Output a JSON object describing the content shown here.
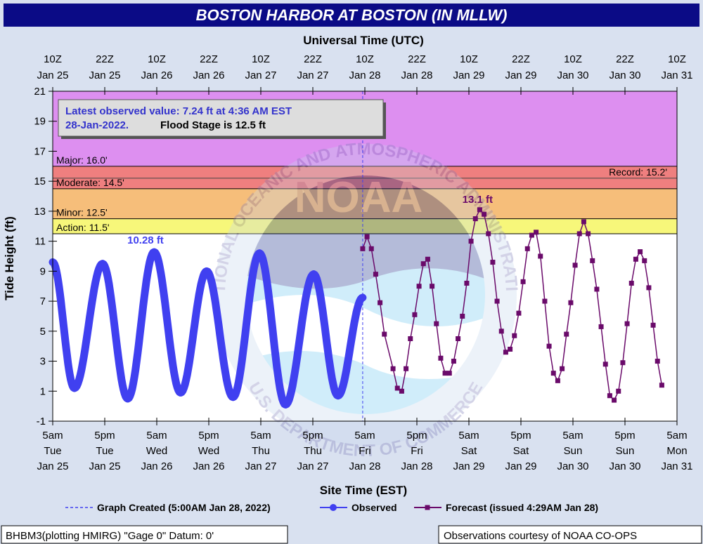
{
  "title": "BOSTON HARBOR AT BOSTON (IN MLLW)",
  "top_axis_title": "Universal Time (UTC)",
  "top_ticks": [
    {
      "hour": "10Z",
      "date": "Jan 25"
    },
    {
      "hour": "22Z",
      "date": "Jan 25"
    },
    {
      "hour": "10Z",
      "date": "Jan 26"
    },
    {
      "hour": "22Z",
      "date": "Jan 26"
    },
    {
      "hour": "10Z",
      "date": "Jan 27"
    },
    {
      "hour": "22Z",
      "date": "Jan 27"
    },
    {
      "hour": "10Z",
      "date": "Jan 28"
    },
    {
      "hour": "22Z",
      "date": "Jan 28"
    },
    {
      "hour": "10Z",
      "date": "Jan 29"
    },
    {
      "hour": "22Z",
      "date": "Jan 29"
    },
    {
      "hour": "10Z",
      "date": "Jan 30"
    },
    {
      "hour": "22Z",
      "date": "Jan 30"
    },
    {
      "hour": "10Z",
      "date": "Jan 31"
    }
  ],
  "bottom_axis_title": "Site Time (EST)",
  "bottom_ticks": [
    {
      "time": "5am",
      "day": "Tue",
      "date": "Jan 25"
    },
    {
      "time": "5pm",
      "day": "Tue",
      "date": "Jan 25"
    },
    {
      "time": "5am",
      "day": "Wed",
      "date": "Jan 26"
    },
    {
      "time": "5pm",
      "day": "Wed",
      "date": "Jan 26"
    },
    {
      "time": "5am",
      "day": "Thu",
      "date": "Jan 27"
    },
    {
      "time": "5pm",
      "day": "Thu",
      "date": "Jan 27"
    },
    {
      "time": "5am",
      "day": "Fri",
      "date": "Jan 28"
    },
    {
      "time": "5pm",
      "day": "Fri",
      "date": "Jan 28"
    },
    {
      "time": "5am",
      "day": "Sat",
      "date": "Jan 29"
    },
    {
      "time": "5pm",
      "day": "Sat",
      "date": "Jan 29"
    },
    {
      "time": "5am",
      "day": "Sun",
      "date": "Jan 30"
    },
    {
      "time": "5pm",
      "day": "Sun",
      "date": "Jan 30"
    },
    {
      "time": "5am",
      "day": "Mon",
      "date": "Jan 31"
    }
  ],
  "y_axis_title": "Tide Height (ft)",
  "y_ticks": [
    "21",
    "19",
    "17",
    "15",
    "13",
    "11",
    "9",
    "7",
    "5",
    "3",
    "1",
    "-1"
  ],
  "info_box": {
    "line1": "Latest observed value: 7.24 ft at 4:36 AM EST",
    "line2a": "28-Jan-2022.",
    "line2b": "Flood Stage is 12.5 ft"
  },
  "legend": {
    "created": "Graph Created (5:00AM Jan 28, 2022)",
    "observed": "Observed",
    "forecast": "Forecast (issued 4:29AM Jan 28)"
  },
  "footer": {
    "left": "BHBM3(plotting HMIRG) \"Gage 0\" Datum: 0'",
    "right": "Observations courtesy of NOAA CO-OPS"
  },
  "watermark": {
    "logo_text": "NOAA",
    "ring_top": "NATIONAL OCEANIC AND ATMOSPHERIC ADMINISTRATION",
    "ring_bottom": "U.S. DEPARTMENT OF COMMERCE"
  },
  "colors": {
    "title_bg": "#0b0b86",
    "plot_bg": "#ffffff",
    "frame_bg": "#d9e1f0",
    "major": "#dd8ff0",
    "moderate": "#ef7f7f",
    "minor": "#f6be7a",
    "action": "#f7f77a",
    "observed": "#4040f0",
    "forecast": "#6a0a6a",
    "info_text": "#3333cc"
  },
  "chart_data": {
    "type": "line",
    "title": "BOSTON HARBOR AT BOSTON (IN MLLW)",
    "xlabel": "Site Time (EST)",
    "ylabel": "Tide Height (ft)",
    "x2label": "Universal Time (UTC)",
    "x_unit": "hours after 5am EST Tue Jan 25",
    "xlim": [
      0,
      144
    ],
    "ylim": [
      -1,
      21
    ],
    "grid": false,
    "flood_categories": [
      {
        "name": "Action",
        "label": "Action: 11.5'",
        "from": 11.5,
        "to": 12.5
      },
      {
        "name": "Minor",
        "label": "Minor: 12.5'",
        "from": 12.5,
        "to": 14.5
      },
      {
        "name": "Moderate",
        "label": "Moderate: 14.5'",
        "from": 14.5,
        "to": 16.0
      },
      {
        "name": "Major",
        "label": "Major: 16.0'",
        "from": 16.0,
        "to": 21
      }
    ],
    "record": {
      "label": "Record: 15.2'",
      "value": 15.2
    },
    "graph_created_x": 71.5,
    "annotations": [
      {
        "text": "10.28 ft",
        "x": 21.4,
        "y": 10.28,
        "series": "Observed"
      },
      {
        "text": "13.1 ft",
        "x": 98,
        "y": 13.1,
        "series": "Forecast"
      }
    ],
    "series": [
      {
        "name": "Observed",
        "x": [
          0,
          5,
          11.5,
          17.3,
          23.4,
          29.5,
          35.5,
          41.6,
          47.7,
          53.7,
          60.2,
          65.8,
          71.5
        ],
        "y": [
          9.6,
          1.2,
          9.5,
          0.5,
          10.28,
          0.9,
          9.0,
          0.6,
          10.2,
          0.1,
          8.8,
          0.7,
          7.24
        ]
      },
      {
        "name": "Forecast",
        "x": [
          71.5,
          72.5,
          73.5,
          74.5,
          75.5,
          76.5,
          78.5,
          79.5,
          80.5,
          81.5,
          82.5,
          83.5,
          84.5,
          85.5,
          86.5,
          87.5,
          88.5,
          89.5,
          90.5,
          91.5,
          92.5,
          93.5,
          94.5,
          95.5,
          96.5,
          97.5,
          98.5,
          99.5,
          100.5,
          101.5,
          102.5,
          103.5,
          104.5,
          105.5,
          106.5,
          107.5,
          108.5,
          109.5,
          110.5,
          111.5,
          112.5,
          113.5,
          114.5,
          115.5,
          116.5,
          117.5,
          118.5,
          119.5,
          120.5,
          121.5,
          122.5,
          123.5,
          124.5,
          125.5,
          126.5,
          127.5,
          128.5,
          129.5,
          130.5,
          131.5,
          132.5,
          133.5,
          134.5,
          135.5,
          136.5,
          137.5,
          138.5,
          139.5,
          140.5
        ],
        "y": [
          10.5,
          11.3,
          10.5,
          8.8,
          6.9,
          4.8,
          2.5,
          1.2,
          1.0,
          2.5,
          4.5,
          6.1,
          8.0,
          9.5,
          9.8,
          8.0,
          5.5,
          3.2,
          2.2,
          2.2,
          3.0,
          4.5,
          6.0,
          8.2,
          11.0,
          12.5,
          13.1,
          12.8,
          11.5,
          9.6,
          7.0,
          5.0,
          3.6,
          3.8,
          4.7,
          6.2,
          8.3,
          10.5,
          11.4,
          11.6,
          10.0,
          7.0,
          4.0,
          2.2,
          1.7,
          2.5,
          4.8,
          6.9,
          9.4,
          11.5,
          12.3,
          11.5,
          9.7,
          7.8,
          5.3,
          2.8,
          0.7,
          0.4,
          1.0,
          2.9,
          5.5,
          8.2,
          9.8,
          10.3,
          9.7,
          7.9,
          5.4,
          3.0,
          1.4
        ]
      }
    ]
  }
}
